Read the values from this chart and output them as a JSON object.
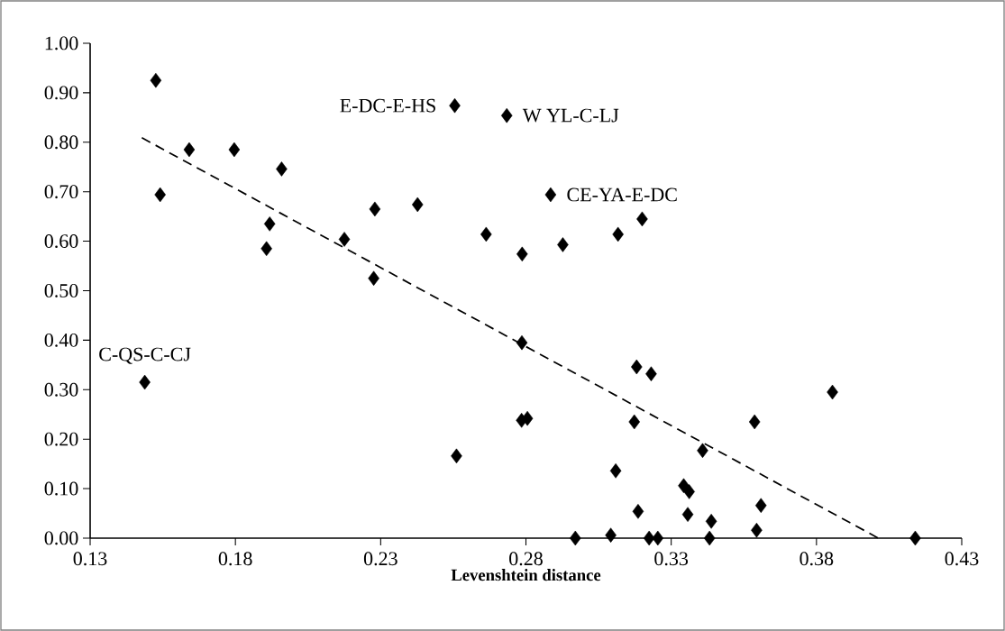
{
  "chart_data": {
    "type": "scatter",
    "xlabel": "Levenshtein distance",
    "xlim": [
      0.13,
      0.43
    ],
    "xticks": [
      0.13,
      0.18,
      0.23,
      0.28,
      0.33,
      0.38,
      0.43
    ],
    "ylim": [
      0,
      1
    ],
    "yticks": [
      {
        "value": 0,
        "label": "0.00"
      },
      {
        "value": 0.1,
        "label": "0.10"
      },
      {
        "value": 0.2,
        "label": "0.20"
      },
      {
        "value": 0.3,
        "label": "0.30"
      },
      {
        "value": 0.4,
        "label": "0.40"
      },
      {
        "value": 0.5,
        "label": "0.50"
      },
      {
        "value": 0.6,
        "label": "0.60"
      },
      {
        "value": 0.7,
        "label": "0.70"
      },
      {
        "value": 0.8,
        "label": "0.80"
      },
      {
        "value": 0.9,
        "label": "0.90"
      },
      {
        "value": 1,
        "label": "1.00"
      }
    ],
    "grid": false,
    "series": [
      {
        "color": "#000000",
        "marker": "diamond",
        "x": [
          0.1526,
          0.2555,
          0.2734,
          0.1641,
          0.1796,
          0.1959,
          0.1541,
          0.228,
          0.2427,
          0.1918,
          0.1907,
          0.2175,
          0.2663,
          0.2787,
          0.2276,
          0.2885,
          0.32,
          0.3117,
          0.2927,
          0.1488,
          0.2786,
          0.2785,
          0.2805,
          0.2561,
          0.3181,
          0.3231,
          0.3855,
          0.3173,
          0.3587,
          0.3408,
          0.3109,
          0.3343,
          0.3362,
          0.3186,
          0.3357,
          0.3438,
          0.3609,
          0.3594,
          0.3092,
          0.297,
          0.3224,
          0.3254,
          0.3432,
          0.414
        ],
        "values": [
          0.925,
          0.874,
          0.854,
          0.785,
          0.785,
          0.746,
          0.694,
          0.665,
          0.674,
          0.635,
          0.585,
          0.604,
          0.614,
          0.574,
          0.525,
          0.694,
          0.645,
          0.614,
          0.593,
          0.315,
          0.395,
          0.238,
          0.242,
          0.166,
          0.346,
          0.332,
          0.295,
          0.235,
          0.235,
          0.177,
          0.136,
          0.106,
          0.094,
          0.054,
          0.048,
          0.034,
          0.066,
          0.016,
          0.006,
          0,
          0,
          0,
          0,
          0
        ]
      },
      {
        "type": "line",
        "color": "#000000",
        "marker": "none",
        "line_style": "dashed",
        "x": [
          0.1478,
          0.4013
        ],
        "values": [
          0.809,
          0
        ]
      }
    ],
    "annotations": [
      {
        "text": "E-DC-E-HS",
        "x": 0.2555,
        "y": 0.874
      },
      {
        "text": "W YL-C-LJ",
        "x": 0.2734,
        "y": 0.854
      },
      {
        "text": "CE-YA-E-DC",
        "x": 0.2885,
        "y": 0.694
      },
      {
        "text": "C-QS-C-CJ",
        "x": 0.1488,
        "y": 0.315
      }
    ]
  }
}
